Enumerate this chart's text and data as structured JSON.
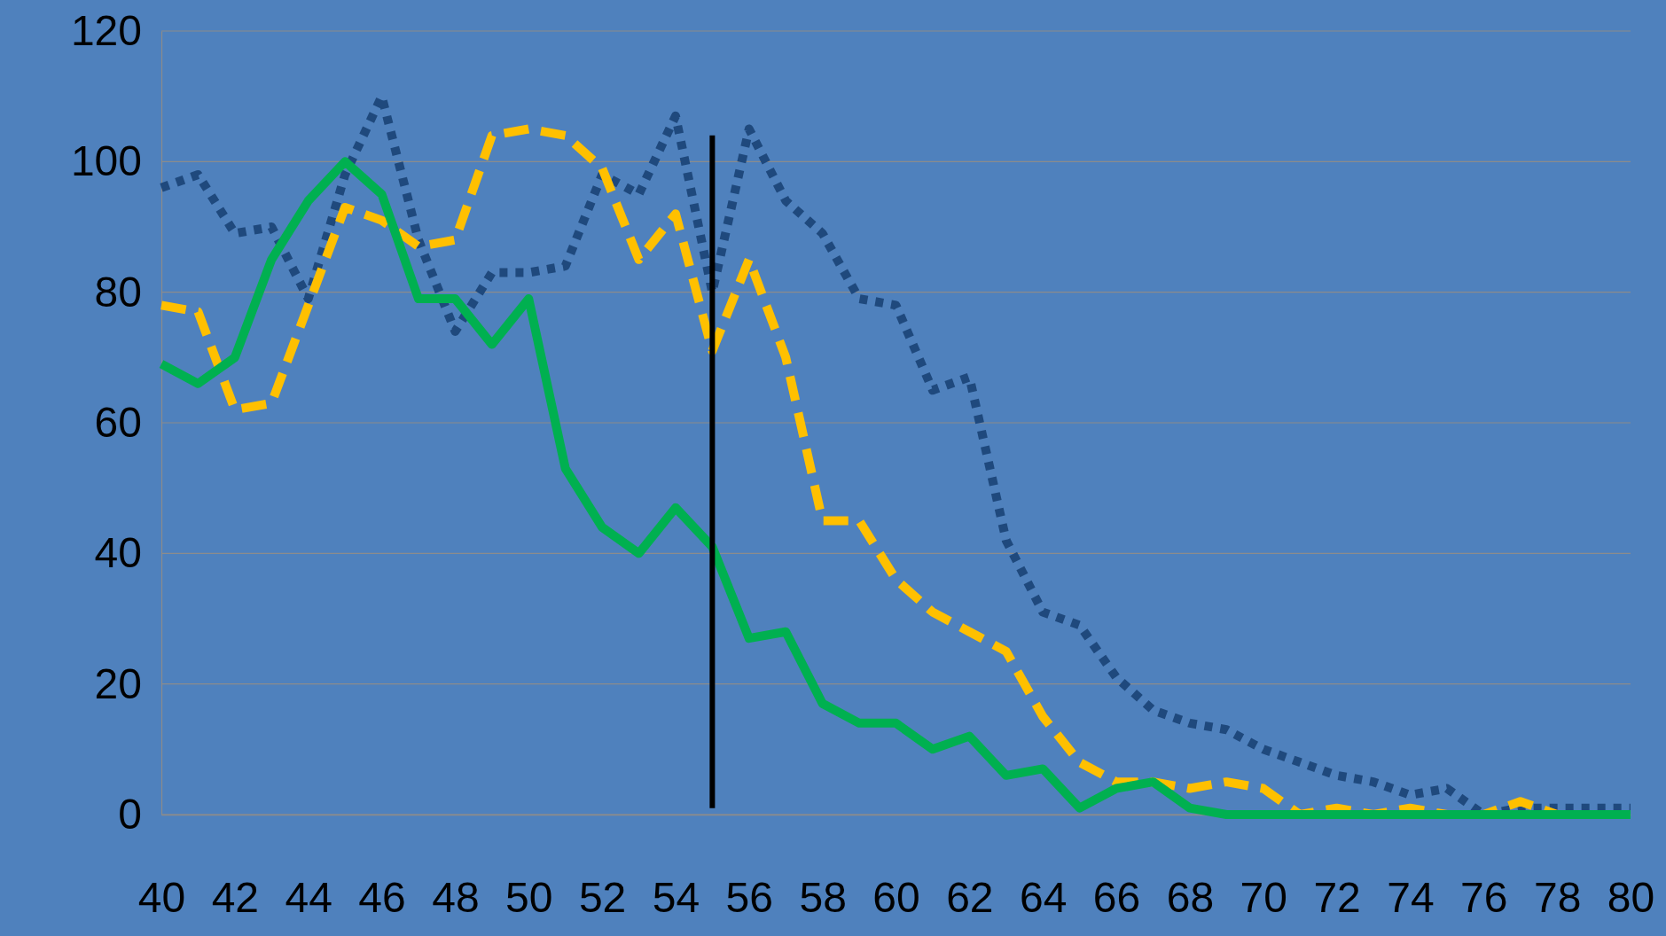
{
  "chart_data": {
    "type": "line",
    "x": [
      40,
      41,
      42,
      43,
      44,
      45,
      46,
      47,
      48,
      49,
      50,
      51,
      52,
      53,
      54,
      55,
      56,
      57,
      58,
      59,
      60,
      61,
      62,
      63,
      64,
      65,
      66,
      67,
      68,
      69,
      70,
      71,
      72,
      73,
      74,
      75,
      76,
      77,
      78,
      79,
      80
    ],
    "series": [
      {
        "color": "#1f497d",
        "line_style": "dotted",
        "values": [
          96,
          98,
          89,
          90,
          79,
          98,
          110,
          88,
          74,
          83,
          83,
          84,
          98,
          95,
          107,
          80,
          105,
          94,
          89,
          79,
          78,
          65,
          67,
          42,
          31,
          29,
          21,
          16,
          14,
          13,
          10,
          8,
          6,
          5,
          3,
          4,
          0,
          1,
          1,
          1,
          1
        ]
      },
      {
        "color": "#ffc000",
        "line_style": "dashed",
        "values": [
          78,
          77,
          62,
          63,
          78,
          93,
          91,
          87,
          88,
          104,
          105,
          104,
          99,
          85,
          92,
          71,
          85,
          70,
          45,
          45,
          36,
          31,
          28,
          25,
          15,
          8,
          5,
          5,
          4,
          5,
          4,
          0,
          1,
          0,
          1,
          0,
          0,
          2,
          0,
          0,
          0
        ]
      },
      {
        "color": "#00b050",
        "line_style": "solid",
        "values": [
          69,
          66,
          70,
          85,
          94,
          100,
          95,
          79,
          79,
          72,
          79,
          53,
          44,
          40,
          47,
          41,
          27,
          28,
          17,
          14,
          14,
          10,
          12,
          6,
          7,
          1,
          4,
          5,
          1,
          0,
          0,
          0,
          0,
          0,
          0,
          0,
          0,
          0,
          0,
          0,
          0
        ]
      }
    ],
    "xlim": [
      40,
      80
    ],
    "xticks": [
      40,
      42,
      44,
      46,
      48,
      50,
      52,
      54,
      56,
      58,
      60,
      62,
      64,
      66,
      68,
      70,
      72,
      74,
      76,
      78,
      80
    ],
    "ylim": [
      0,
      120
    ],
    "yticks": [
      0,
      20,
      40,
      60,
      80,
      100,
      120
    ],
    "grid": "y",
    "marker": "none",
    "ref_lines": [
      {
        "axis": "x",
        "value": 55,
        "color": "#000000"
      }
    ]
  }
}
